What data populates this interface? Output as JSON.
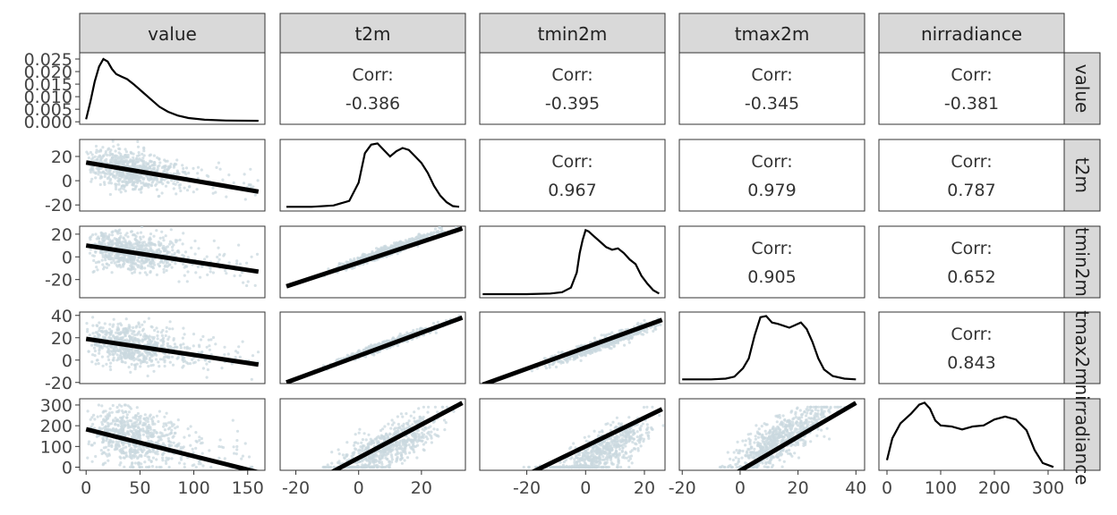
{
  "variables": [
    "value",
    "t2m",
    "tmin2m",
    "tmax2m",
    "nirradiance"
  ],
  "colors": {
    "points": "#c9d8df",
    "fit_line": "#000000",
    "density_line": "#000000",
    "strip_fill": "#d9d9d9",
    "panel_border": "#333333"
  },
  "chart_data": {
    "type": "scatter-matrix",
    "title": "",
    "grid": false,
    "variables": [
      "value",
      "t2m",
      "tmin2m",
      "tmax2m",
      "nirradiance"
    ],
    "ranges": {
      "value": [
        -6,
        166
      ],
      "t2m": [
        -25,
        34
      ],
      "tmin2m": [
        -36,
        27
      ],
      "tmax2m": [
        -21,
        43
      ],
      "nirradiance": [
        -15,
        330
      ]
    },
    "x_ticks": {
      "value": [
        "0",
        "50",
        "100",
        "150"
      ],
      "t2m": [
        "-20",
        "0",
        "20"
      ],
      "tmin2m": [
        "-20",
        "0",
        "20"
      ],
      "tmax2m": [
        "-20",
        "0",
        "20",
        "40"
      ],
      "nirradiance": [
        "0",
        "100",
        "200",
        "300"
      ]
    },
    "y_ticks": {
      "value": [
        "0.000",
        "0.005",
        "0.010",
        "0.015",
        "0.020",
        "0.025"
      ],
      "t2m": [
        "-20",
        "0",
        "20"
      ],
      "tmin2m": [
        "-20",
        "0",
        "20"
      ],
      "tmax2m": [
        "-20",
        "0",
        "20",
        "40"
      ],
      "nirradiance": [
        "0",
        "100",
        "200",
        "300"
      ]
    },
    "density_value_ylim": [
      -0.001,
      0.0275
    ],
    "correlations": [
      {
        "row": "value",
        "col": "t2m",
        "label": "Corr:",
        "value": "-0.386"
      },
      {
        "row": "value",
        "col": "tmin2m",
        "label": "Corr:",
        "value": "-0.395"
      },
      {
        "row": "value",
        "col": "tmax2m",
        "label": "Corr:",
        "value": "-0.345"
      },
      {
        "row": "value",
        "col": "nirradiance",
        "label": "Corr:",
        "value": "-0.381"
      },
      {
        "row": "t2m",
        "col": "tmin2m",
        "label": "Corr:",
        "value": "0.967"
      },
      {
        "row": "t2m",
        "col": "tmax2m",
        "label": "Corr:",
        "value": "0.979"
      },
      {
        "row": "t2m",
        "col": "nirradiance",
        "label": "Corr:",
        "value": "0.787"
      },
      {
        "row": "tmin2m",
        "col": "tmax2m",
        "label": "Corr:",
        "value": "0.905"
      },
      {
        "row": "tmin2m",
        "col": "nirradiance",
        "label": "Corr:",
        "value": "0.652"
      },
      {
        "row": "tmax2m",
        "col": "nirradiance",
        "label": "Corr:",
        "value": "0.843"
      }
    ],
    "densities": {
      "value": [
        [
          0,
          0.001
        ],
        [
          4,
          0.008
        ],
        [
          8,
          0.016
        ],
        [
          12,
          0.022
        ],
        [
          16,
          0.025
        ],
        [
          20,
          0.024
        ],
        [
          24,
          0.021
        ],
        [
          28,
          0.019
        ],
        [
          33,
          0.018
        ],
        [
          38,
          0.017
        ],
        [
          44,
          0.015
        ],
        [
          52,
          0.012
        ],
        [
          60,
          0.009
        ],
        [
          68,
          0.006
        ],
        [
          76,
          0.004
        ],
        [
          85,
          0.0025
        ],
        [
          95,
          0.0015
        ],
        [
          110,
          0.0008
        ],
        [
          130,
          0.0005
        ],
        [
          160,
          0.0004
        ]
      ],
      "t2m": [
        [
          -23,
          0.003
        ],
        [
          -15,
          0.003
        ],
        [
          -8,
          0.005
        ],
        [
          -3,
          0.012
        ],
        [
          0,
          0.04
        ],
        [
          2,
          0.085
        ],
        [
          4,
          0.098
        ],
        [
          6,
          0.1
        ],
        [
          8,
          0.09
        ],
        [
          10,
          0.08
        ],
        [
          12,
          0.088
        ],
        [
          14,
          0.093
        ],
        [
          16,
          0.09
        ],
        [
          18,
          0.08
        ],
        [
          20,
          0.07
        ],
        [
          22,
          0.055
        ],
        [
          24,
          0.035
        ],
        [
          26,
          0.02
        ],
        [
          28,
          0.01
        ],
        [
          30,
          0.004
        ],
        [
          32,
          0.003
        ]
      ],
      "tmin2m": [
        [
          -35,
          0.002
        ],
        [
          -20,
          0.002
        ],
        [
          -12,
          0.003
        ],
        [
          -8,
          0.005
        ],
        [
          -5,
          0.012
        ],
        [
          -3,
          0.035
        ],
        [
          -2,
          0.065
        ],
        [
          -1,
          0.085
        ],
        [
          0,
          0.1
        ],
        [
          1,
          0.098
        ],
        [
          3,
          0.09
        ],
        [
          5,
          0.082
        ],
        [
          7,
          0.074
        ],
        [
          9,
          0.07
        ],
        [
          11,
          0.072
        ],
        [
          13,
          0.065
        ],
        [
          15,
          0.055
        ],
        [
          17,
          0.048
        ],
        [
          19,
          0.03
        ],
        [
          21,
          0.018
        ],
        [
          23,
          0.008
        ],
        [
          25,
          0.003
        ]
      ],
      "tmax2m": [
        [
          -20,
          0.003
        ],
        [
          -10,
          0.003
        ],
        [
          -5,
          0.004
        ],
        [
          -2,
          0.007
        ],
        [
          1,
          0.02
        ],
        [
          3,
          0.035
        ],
        [
          5,
          0.07
        ],
        [
          7,
          0.098
        ],
        [
          9,
          0.1
        ],
        [
          11,
          0.09
        ],
        [
          13,
          0.088
        ],
        [
          15,
          0.085
        ],
        [
          17,
          0.082
        ],
        [
          19,
          0.086
        ],
        [
          21,
          0.09
        ],
        [
          23,
          0.08
        ],
        [
          25,
          0.06
        ],
        [
          27,
          0.035
        ],
        [
          29,
          0.018
        ],
        [
          32,
          0.008
        ],
        [
          36,
          0.004
        ],
        [
          40,
          0.003
        ]
      ],
      "nirradiance": [
        [
          0,
          0.0008
        ],
        [
          10,
          0.003
        ],
        [
          25,
          0.0045
        ],
        [
          45,
          0.0055
        ],
        [
          60,
          0.0064
        ],
        [
          70,
          0.0066
        ],
        [
          80,
          0.006
        ],
        [
          90,
          0.0048
        ],
        [
          100,
          0.0043
        ],
        [
          120,
          0.0042
        ],
        [
          140,
          0.0039
        ],
        [
          160,
          0.0042
        ],
        [
          180,
          0.0043
        ],
        [
          200,
          0.0049
        ],
        [
          220,
          0.0052
        ],
        [
          240,
          0.0049
        ],
        [
          260,
          0.0038
        ],
        [
          275,
          0.0018
        ],
        [
          290,
          0.0005
        ],
        [
          310,
          0.0001
        ]
      ]
    },
    "fit_lines": [
      {
        "row": "t2m",
        "col": "value",
        "x": [
          0,
          160
        ],
        "y": [
          15,
          -9
        ]
      },
      {
        "row": "tmin2m",
        "col": "value",
        "x": [
          0,
          160
        ],
        "y": [
          10,
          -13
        ]
      },
      {
        "row": "tmax2m",
        "col": "value",
        "x": [
          0,
          160
        ],
        "y": [
          19,
          -4
        ]
      },
      {
        "row": "nirradiance",
        "col": "value",
        "x": [
          0,
          160
        ],
        "y": [
          183,
          -25
        ]
      },
      {
        "row": "tmin2m",
        "col": "t2m",
        "x": [
          -23,
          33
        ],
        "y": [
          -26,
          25
        ]
      },
      {
        "row": "tmax2m",
        "col": "t2m",
        "x": [
          -23,
          33
        ],
        "y": [
          -20,
          38
        ]
      },
      {
        "row": "tmax2m",
        "col": "tmin2m",
        "x": [
          -35,
          26
        ],
        "y": [
          -22,
          36
        ]
      },
      {
        "row": "nirradiance",
        "col": "t2m",
        "x": [
          -23,
          33
        ],
        "y": [
          -140,
          310
        ]
      },
      {
        "row": "nirradiance",
        "col": "tmin2m",
        "x": [
          -35,
          26
        ],
        "y": [
          -140,
          280
        ]
      },
      {
        "row": "nirradiance",
        "col": "tmax2m",
        "x": [
          -20,
          40
        ],
        "y": [
          -180,
          310
        ]
      }
    ]
  }
}
